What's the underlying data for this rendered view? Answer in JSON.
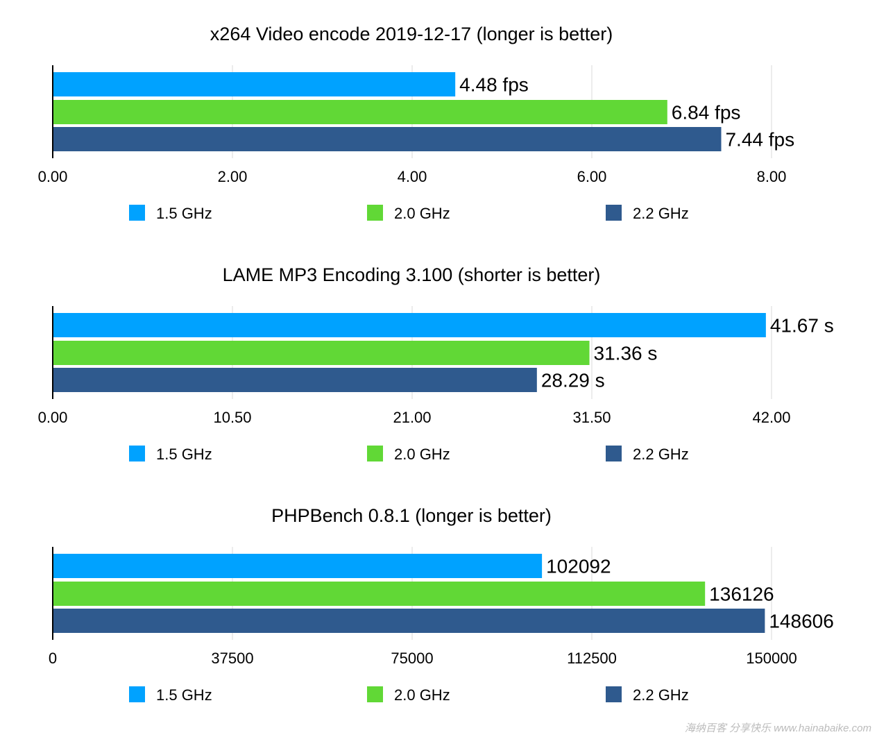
{
  "colors": {
    "s1": "#00a2ff",
    "s2": "#61d836",
    "s3": "#2f5a8e",
    "grid": "#d9d9d9",
    "axis": "#000000"
  },
  "watermark": "海纳百客 分享快乐 www.hainabaike.com",
  "chart_data": [
    {
      "type": "bar",
      "orientation": "horizontal",
      "title": "x264 Video encode 2019-12-17 (longer is better)",
      "xlim": [
        0,
        8
      ],
      "ticks": [
        "0.00",
        "2.00",
        "4.00",
        "6.00",
        "8.00"
      ],
      "grid": true,
      "legend_position": "bottom",
      "series": [
        {
          "name": "1.5 GHz",
          "value": 4.48,
          "label": "4.48 fps"
        },
        {
          "name": "2.0 GHz",
          "value": 6.84,
          "label": "6.84 fps"
        },
        {
          "name": "2.2 GHz",
          "value": 7.44,
          "label": "7.44 fps"
        }
      ]
    },
    {
      "type": "bar",
      "orientation": "horizontal",
      "title": "LAME MP3 Encoding 3.100 (shorter is better)",
      "xlim": [
        0,
        42
      ],
      "ticks": [
        "0.00",
        "10.50",
        "21.00",
        "31.50",
        "42.00"
      ],
      "grid": true,
      "legend_position": "bottom",
      "series": [
        {
          "name": "1.5 GHz",
          "value": 41.67,
          "label": "41.67 s"
        },
        {
          "name": "2.0 GHz",
          "value": 31.36,
          "label": "31.36 s"
        },
        {
          "name": "2.2 GHz",
          "value": 28.29,
          "label": "28.29 s"
        }
      ]
    },
    {
      "type": "bar",
      "orientation": "horizontal",
      "title": "PHPBench 0.8.1 (longer is better)",
      "xlim": [
        0,
        150000
      ],
      "ticks": [
        "0",
        "37500",
        "75000",
        "112500",
        "150000"
      ],
      "grid": true,
      "legend_position": "bottom",
      "series": [
        {
          "name": "1.5 GHz",
          "value": 102092,
          "label": "102092"
        },
        {
          "name": "2.0 GHz",
          "value": 136126,
          "label": "136126"
        },
        {
          "name": "2.2 GHz",
          "value": 148606,
          "label": "148606"
        }
      ]
    }
  ]
}
